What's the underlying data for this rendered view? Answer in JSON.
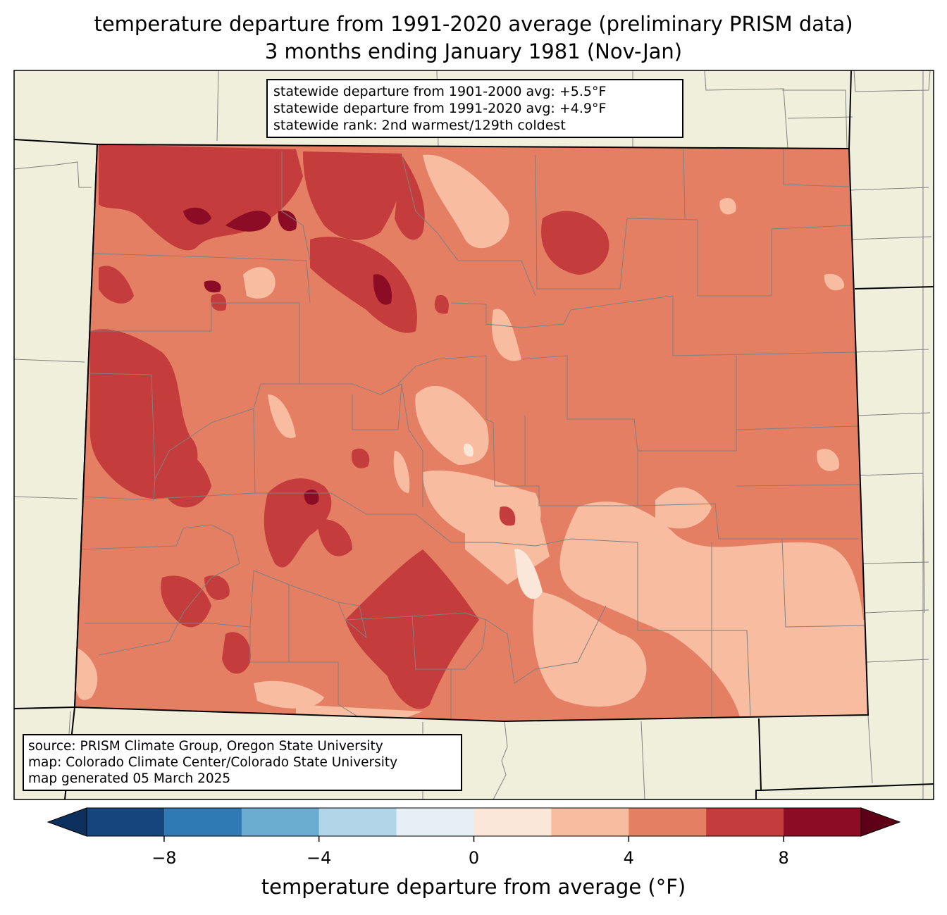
{
  "title_line1": "temperature departure from 1991-2020 average (preliminary PRISM data)",
  "title_line2": "3 months ending January 1981 (Nov-Jan)",
  "stats": {
    "line1": "statewide departure from 1901-2000 avg: +5.5°F",
    "line2": "statewide departure from 1991-2020 avg: +4.9°F",
    "line3": "statewide rank: 2nd warmest/129th coldest"
  },
  "source": {
    "line1": "source: PRISM Climate Group, Oregon State University",
    "line2": "map: Colorado Climate Center/Colorado State University",
    "line3": "map generated 05 March 2025"
  },
  "colorbar": {
    "label": "temperature departure from average (°F)",
    "ticks": [
      "−8",
      "−4",
      "0",
      "4",
      "8"
    ],
    "tick_values": [
      -8,
      -4,
      0,
      4,
      8
    ],
    "boundaries": [
      -10,
      -8,
      -6,
      -4,
      -2,
      0,
      2,
      4,
      6,
      8,
      10
    ],
    "colors": [
      "#16457d",
      "#2f79b5",
      "#6aadd1",
      "#b2d6e8",
      "#e5eff5",
      "#fbe6da",
      "#f8bca1",
      "#e47f64",
      "#c43c3c",
      "#8b0c24"
    ],
    "under_color": "#0c2f5e",
    "over_color": "#5e0018"
  },
  "colors": {
    "land_background": "#f0efdc",
    "county_lines": "#808080",
    "state_lines": "#000000"
  }
}
